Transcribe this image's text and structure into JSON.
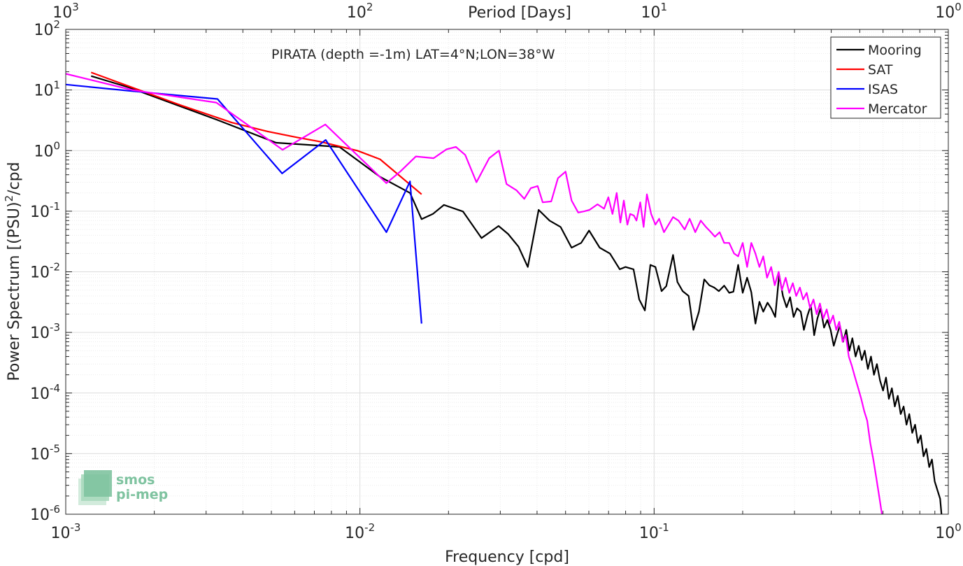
{
  "chart_data": {
    "type": "line",
    "annotation": "PIRATA (depth =-1m) LAT=4°N;LON=38°W",
    "xlabel": "Frequency [cpd]",
    "ylabel": "Power Spectrum [(PSU)",
    "ylabel_superscript": "2",
    "ylabel_suffix": "/cpd",
    "top_xlabel": "Period [Days]",
    "xscale": "log",
    "yscale": "log",
    "xlim": [
      0.001,
      1
    ],
    "ylim": [
      1e-06,
      100
    ],
    "grid": true,
    "legend_position": "top-right",
    "x_ticks": [
      {
        "value": 0.001,
        "base": "10",
        "exp": "-3"
      },
      {
        "value": 0.01,
        "base": "10",
        "exp": "-2"
      },
      {
        "value": 0.1,
        "base": "10",
        "exp": "-1"
      },
      {
        "value": 1,
        "base": "10",
        "exp": "0"
      }
    ],
    "y_ticks": [
      {
        "value": 1e-06,
        "base": "10",
        "exp": "-6"
      },
      {
        "value": 1e-05,
        "base": "10",
        "exp": "-5"
      },
      {
        "value": 0.0001,
        "base": "10",
        "exp": "-4"
      },
      {
        "value": 0.001,
        "base": "10",
        "exp": "-3"
      },
      {
        "value": 0.01,
        "base": "10",
        "exp": "-2"
      },
      {
        "value": 0.1,
        "base": "10",
        "exp": "-1"
      },
      {
        "value": 1,
        "base": "10",
        "exp": "0"
      },
      {
        "value": 10,
        "base": "10",
        "exp": "1"
      },
      {
        "value": 100,
        "base": "10",
        "exp": "2"
      }
    ],
    "top_ticks": [
      {
        "period": 1000,
        "base": "10",
        "exp": "3"
      },
      {
        "period": 100,
        "base": "10",
        "exp": "2"
      },
      {
        "period": 10,
        "base": "10",
        "exp": "1"
      },
      {
        "period": 1,
        "base": "10",
        "exp": "0"
      }
    ],
    "series": [
      {
        "name": "Mooring",
        "color": "#000000",
        "points": [
          [
            0.00122,
            17
          ],
          [
            0.00164,
            11
          ],
          [
            0.00328,
            3.2
          ],
          [
            0.00519,
            1.35
          ],
          [
            0.00852,
            1.15
          ],
          [
            0.0117,
            0.37
          ],
          [
            0.0148,
            0.2
          ],
          [
            0.0162,
            0.074
          ],
          [
            0.0177,
            0.09
          ],
          [
            0.0193,
            0.127
          ],
          [
            0.0224,
            0.099
          ],
          [
            0.0259,
            0.036
          ],
          [
            0.0296,
            0.057
          ],
          [
            0.0319,
            0.042
          ],
          [
            0.0346,
            0.026
          ],
          [
            0.0372,
            0.012
          ],
          [
            0.0405,
            0.105
          ],
          [
            0.0441,
            0.07
          ],
          [
            0.0481,
            0.055
          ],
          [
            0.0524,
            0.025
          ],
          [
            0.0565,
            0.03
          ],
          [
            0.0601,
            0.048
          ],
          [
            0.0653,
            0.025
          ],
          [
            0.0708,
            0.02
          ],
          [
            0.0764,
            0.011
          ],
          [
            0.0799,
            0.012
          ],
          [
            0.0851,
            0.011
          ],
          [
            0.089,
            0.0035
          ],
          [
            0.093,
            0.0023
          ],
          [
            0.0971,
            0.013
          ],
          [
            0.101,
            0.012
          ],
          [
            0.106,
            0.0048
          ],
          [
            0.11,
            0.0058
          ],
          [
            0.116,
            0.019
          ],
          [
            0.12,
            0.0068
          ],
          [
            0.125,
            0.0048
          ],
          [
            0.131,
            0.004
          ],
          [
            0.136,
            0.0011
          ],
          [
            0.142,
            0.0022
          ],
          [
            0.148,
            0.0075
          ],
          [
            0.154,
            0.006
          ],
          [
            0.16,
            0.0055
          ],
          [
            0.166,
            0.0048
          ],
          [
            0.173,
            0.0059
          ],
          [
            0.18,
            0.0045
          ],
          [
            0.186,
            0.0047
          ],
          [
            0.193,
            0.013
          ],
          [
            0.2,
            0.0045
          ],
          [
            0.207,
            0.008
          ],
          [
            0.214,
            0.0046
          ],
          [
            0.221,
            0.0014
          ],
          [
            0.228,
            0.0032
          ],
          [
            0.235,
            0.0022
          ],
          [
            0.243,
            0.0031
          ],
          [
            0.25,
            0.0025
          ],
          [
            0.258,
            0.0018
          ],
          [
            0.266,
            0.009
          ],
          [
            0.274,
            0.004
          ],
          [
            0.282,
            0.0026
          ],
          [
            0.29,
            0.0038
          ],
          [
            0.298,
            0.0018
          ],
          [
            0.306,
            0.0025
          ],
          [
            0.315,
            0.0022
          ],
          [
            0.323,
            0.0011
          ],
          [
            0.332,
            0.0019
          ],
          [
            0.341,
            0.0028
          ],
          [
            0.35,
            0.0009
          ],
          [
            0.359,
            0.0017
          ],
          [
            0.368,
            0.0025
          ],
          [
            0.378,
            0.0012
          ],
          [
            0.388,
            0.0016
          ],
          [
            0.398,
            0.0011
          ],
          [
            0.408,
            0.0006
          ],
          [
            0.418,
            0.0009
          ],
          [
            0.428,
            0.0013
          ],
          [
            0.439,
            0.0007
          ],
          [
            0.45,
            0.0011
          ],
          [
            0.461,
            0.0005
          ],
          [
            0.472,
            0.0008
          ],
          [
            0.484,
            0.0004
          ],
          [
            0.496,
            0.0006
          ],
          [
            0.508,
            0.00035
          ],
          [
            0.52,
            0.0005
          ],
          [
            0.533,
            0.00025
          ],
          [
            0.546,
            0.0004
          ],
          [
            0.559,
            0.0002
          ],
          [
            0.572,
            0.0003
          ],
          [
            0.586,
            0.00016
          ],
          [
            0.6,
            0.00011
          ],
          [
            0.614,
            0.00018
          ],
          [
            0.628,
            8e-05
          ],
          [
            0.643,
            0.00012
          ],
          [
            0.658,
            6e-05
          ],
          [
            0.673,
            9e-05
          ],
          [
            0.689,
            4.5e-05
          ],
          [
            0.705,
            6e-05
          ],
          [
            0.721,
            3e-05
          ],
          [
            0.737,
            4.5e-05
          ],
          [
            0.754,
            2.2e-05
          ],
          [
            0.771,
            3e-05
          ],
          [
            0.788,
            1.5e-05
          ],
          [
            0.806,
            2e-05
          ],
          [
            0.824,
            9e-06
          ],
          [
            0.842,
            1.2e-05
          ],
          [
            0.861,
            6e-06
          ],
          [
            0.88,
            8e-06
          ],
          [
            0.899,
            3.5e-06
          ],
          [
            0.918,
            2.5e-06
          ],
          [
            0.938,
            1.8e-06
          ],
          [
            0.95,
            9e-07
          ]
        ]
      },
      {
        "name": "SAT",
        "color": "#ff0000",
        "points": [
          [
            0.00122,
            19.5
          ],
          [
            0.00246,
            5.6
          ],
          [
            0.00367,
            2.9
          ],
          [
            0.00489,
            2.05
          ],
          [
            0.00612,
            1.65
          ],
          [
            0.00734,
            1.4
          ],
          [
            0.0098,
            1.0
          ],
          [
            0.0117,
            0.72
          ],
          [
            0.0162,
            0.19
          ]
        ]
      },
      {
        "name": "ISAS",
        "color": "#0000ff",
        "points": [
          [
            0.001,
            12.3
          ],
          [
            0.00164,
            9.7
          ],
          [
            0.00328,
            7.1
          ],
          [
            0.00544,
            0.42
          ],
          [
            0.00765,
            1.5
          ],
          [
            0.0123,
            0.045
          ],
          [
            0.0148,
            0.31
          ],
          [
            0.0162,
            0.0014
          ]
        ]
      },
      {
        "name": "Mercator",
        "color": "#ff00ff",
        "points": [
          [
            0.001,
            18.5
          ],
          [
            0.00168,
            10
          ],
          [
            0.00325,
            6.2
          ],
          [
            0.00546,
            1.03
          ],
          [
            0.00763,
            2.7
          ],
          [
            0.0123,
            0.29
          ],
          [
            0.0137,
            0.45
          ],
          [
            0.0155,
            0.8
          ],
          [
            0.0178,
            0.75
          ],
          [
            0.0197,
            1.05
          ],
          [
            0.0212,
            1.15
          ],
          [
            0.0228,
            0.85
          ],
          [
            0.0249,
            0.3
          ],
          [
            0.0275,
            0.75
          ],
          [
            0.0297,
            1.0
          ],
          [
            0.0315,
            0.28
          ],
          [
            0.0341,
            0.22
          ],
          [
            0.0362,
            0.16
          ],
          [
            0.0381,
            0.24
          ],
          [
            0.0402,
            0.26
          ],
          [
            0.0418,
            0.14
          ],
          [
            0.0447,
            0.145
          ],
          [
            0.0471,
            0.35
          ],
          [
            0.05,
            0.45
          ],
          [
            0.0524,
            0.15
          ],
          [
            0.0552,
            0.095
          ],
          [
            0.058,
            0.1
          ],
          [
            0.0603,
            0.105
          ],
          [
            0.0642,
            0.13
          ],
          [
            0.0676,
            0.11
          ],
          [
            0.0699,
            0.17
          ],
          [
            0.0722,
            0.09
          ],
          [
            0.0746,
            0.2
          ],
          [
            0.0768,
            0.065
          ],
          [
            0.0789,
            0.15
          ],
          [
            0.0811,
            0.06
          ],
          [
            0.0829,
            0.09
          ],
          [
            0.0853,
            0.085
          ],
          [
            0.0871,
            0.07
          ],
          [
            0.0897,
            0.14
          ],
          [
            0.0921,
            0.055
          ],
          [
            0.0945,
            0.19
          ],
          [
            0.0977,
            0.09
          ],
          [
            0.101,
            0.06
          ],
          [
            0.104,
            0.075
          ],
          [
            0.108,
            0.045
          ],
          [
            0.112,
            0.06
          ],
          [
            0.116,
            0.08
          ],
          [
            0.121,
            0.07
          ],
          [
            0.127,
            0.05
          ],
          [
            0.132,
            0.075
          ],
          [
            0.138,
            0.045
          ],
          [
            0.144,
            0.07
          ],
          [
            0.15,
            0.055
          ],
          [
            0.156,
            0.045
          ],
          [
            0.161,
            0.038
          ],
          [
            0.167,
            0.045
          ],
          [
            0.173,
            0.03
          ],
          [
            0.18,
            0.03
          ],
          [
            0.187,
            0.02
          ],
          [
            0.193,
            0.018
          ],
          [
            0.2,
            0.03
          ],
          [
            0.207,
            0.012
          ],
          [
            0.214,
            0.03
          ],
          [
            0.221,
            0.02
          ],
          [
            0.228,
            0.012
          ],
          [
            0.235,
            0.018
          ],
          [
            0.242,
            0.008
          ],
          [
            0.25,
            0.012
          ],
          [
            0.257,
            0.006
          ],
          [
            0.265,
            0.01
          ],
          [
            0.272,
            0.005
          ],
          [
            0.28,
            0.008
          ],
          [
            0.288,
            0.0045
          ],
          [
            0.296,
            0.0065
          ],
          [
            0.304,
            0.004
          ],
          [
            0.313,
            0.0055
          ],
          [
            0.321,
            0.0035
          ],
          [
            0.33,
            0.0045
          ],
          [
            0.339,
            0.0025
          ],
          [
            0.348,
            0.0035
          ],
          [
            0.357,
            0.002
          ],
          [
            0.366,
            0.003
          ],
          [
            0.376,
            0.0017
          ],
          [
            0.386,
            0.0024
          ],
          [
            0.396,
            0.0014
          ],
          [
            0.406,
            0.0019
          ],
          [
            0.416,
            0.0011
          ],
          [
            0.426,
            0.0015
          ],
          [
            0.437,
            0.0007
          ],
          [
            0.448,
            0.0009
          ],
          [
            0.459,
            0.0004
          ],
          [
            0.47,
            0.00028
          ],
          [
            0.482,
            0.00018
          ],
          [
            0.494,
            0.00012
          ],
          [
            0.506,
            8e-05
          ],
          [
            0.518,
            5e-05
          ],
          [
            0.53,
            3.5e-05
          ],
          [
            0.543,
            1.5e-05
          ],
          [
            0.556,
            8e-06
          ],
          [
            0.569,
            4e-06
          ],
          [
            0.582,
            2e-06
          ],
          [
            0.595,
            1e-06
          ]
        ]
      }
    ]
  },
  "logo": {
    "line1": "smos",
    "line2": "pi-mep",
    "color": "#7fc3a0"
  }
}
